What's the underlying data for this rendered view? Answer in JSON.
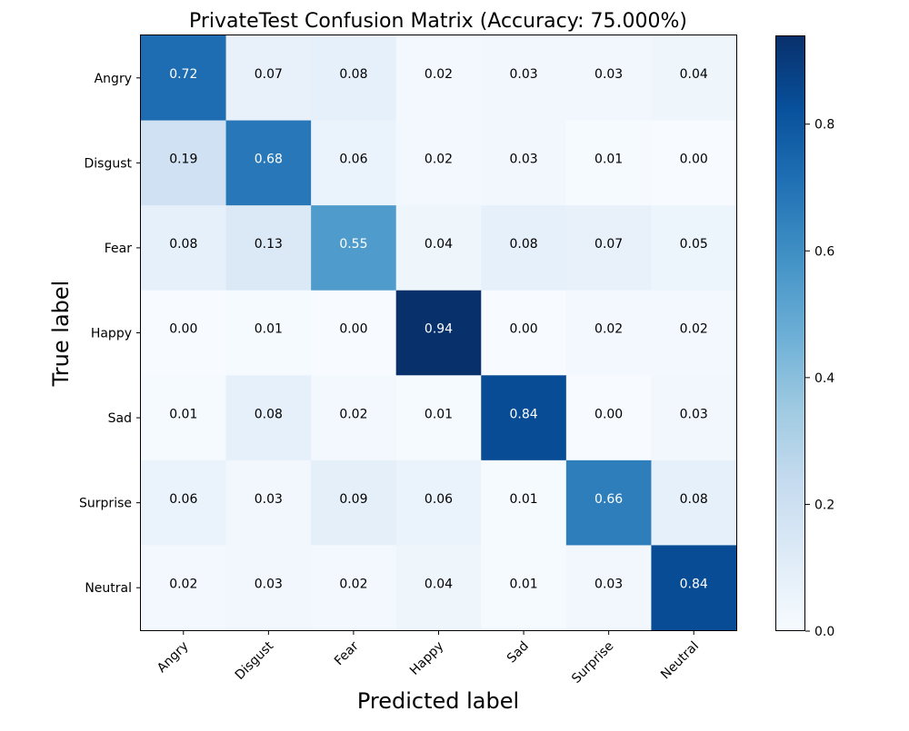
{
  "chart_data": {
    "type": "heatmap",
    "title": "PrivateTest Confusion Matrix (Accuracy: 75.000%)",
    "xlabel": "Predicted label",
    "ylabel": "True label",
    "x_categories": [
      "Angry",
      "Disgust",
      "Fear",
      "Happy",
      "Sad",
      "Surprise",
      "Neutral"
    ],
    "y_categories": [
      "Angry",
      "Disgust",
      "Fear",
      "Happy",
      "Sad",
      "Surprise",
      "Neutral"
    ],
    "values": [
      [
        0.72,
        0.07,
        0.08,
        0.02,
        0.03,
        0.03,
        0.04
      ],
      [
        0.19,
        0.68,
        0.06,
        0.02,
        0.03,
        0.01,
        0.0
      ],
      [
        0.08,
        0.13,
        0.55,
        0.04,
        0.08,
        0.07,
        0.05
      ],
      [
        0.0,
        0.01,
        0.0,
        0.94,
        0.0,
        0.02,
        0.02
      ],
      [
        0.01,
        0.08,
        0.02,
        0.01,
        0.84,
        0.0,
        0.03
      ],
      [
        0.06,
        0.03,
        0.09,
        0.06,
        0.01,
        0.66,
        0.08
      ],
      [
        0.02,
        0.03,
        0.02,
        0.04,
        0.01,
        0.03,
        0.84
      ]
    ],
    "colorbar": {
      "range": [
        0,
        0.94
      ],
      "ticks": [
        0.0,
        0.2,
        0.4,
        0.6,
        0.8
      ],
      "tick_labels": [
        "0.0",
        "0.2",
        "0.4",
        "0.6",
        "0.8"
      ]
    },
    "colormap": "Blues",
    "grid": false
  }
}
